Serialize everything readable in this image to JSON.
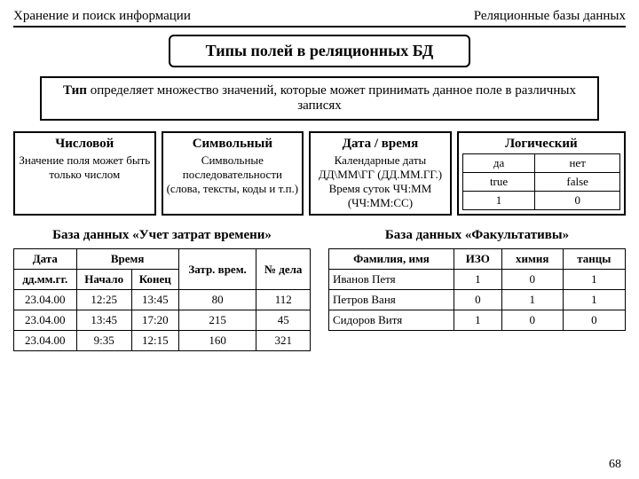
{
  "header": {
    "left": "Хранение и поиск информации",
    "right": "Реляционные базы данных"
  },
  "title": "Типы полей в реляционных БД",
  "definition": "Тип определяет множество значений, которые может принимать данное поле в различных записях",
  "types": {
    "numeric": {
      "name": "Числовой",
      "desc": "Значение поля может быть только числом"
    },
    "symbolic": {
      "name": "Символьный",
      "desc": "Символьные последовательности (слова, тексты, коды и т.п.)"
    },
    "datetime": {
      "name": "Дата / время",
      "desc": "Календарные даты ДД\\ММ\\ГГ (ДД.ММ.ГГ.) Время суток ЧЧ:ММ (ЧЧ:ММ:СС)"
    },
    "logical": {
      "name": "Логический",
      "rows": [
        [
          "да",
          "нет"
        ],
        [
          "true",
          "false"
        ],
        [
          "1",
          "0"
        ]
      ]
    }
  },
  "db1": {
    "title": "База данных «Учет затрат времени»",
    "h": {
      "date": "Дата",
      "dateSub": "дд.мм.гг.",
      "time": "Время",
      "start": "Начало",
      "end": "Конец",
      "dur": "Затр. врем.",
      "case": "№ дела"
    },
    "rows": [
      [
        "23.04.00",
        "12:25",
        "13:45",
        "80",
        "112"
      ],
      [
        "23.04.00",
        "13:45",
        "17:20",
        "215",
        "45"
      ],
      [
        "23.04.00",
        "9:35",
        "12:15",
        "160",
        "321"
      ]
    ]
  },
  "db2": {
    "title": "База данных «Факультативы»",
    "h": [
      "Фамилия, имя",
      "ИЗО",
      "химия",
      "танцы"
    ],
    "rows": [
      [
        "Иванов Петя",
        "1",
        "0",
        "1"
      ],
      [
        "Петров Ваня",
        "0",
        "1",
        "1"
      ],
      [
        "Сидоров Витя",
        "1",
        "0",
        "0"
      ]
    ]
  },
  "page": "68"
}
